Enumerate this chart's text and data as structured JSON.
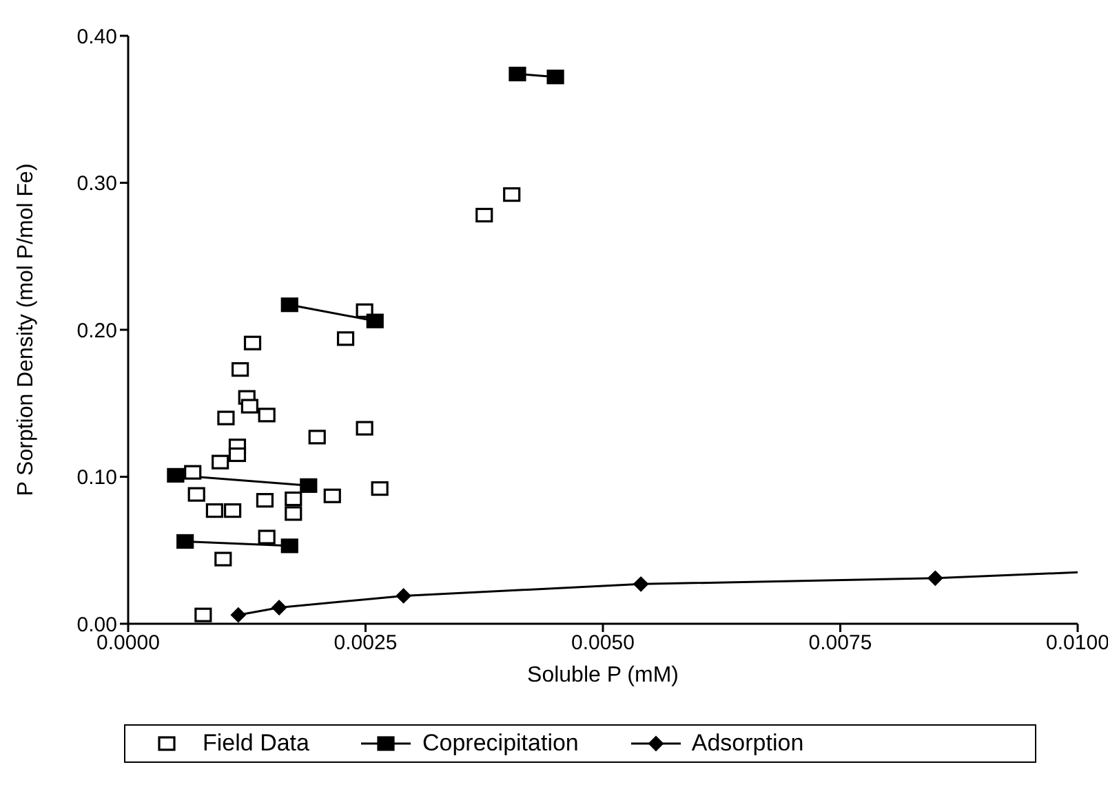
{
  "chart_data": {
    "type": "scatter",
    "xlabel": "Soluble P (mM)",
    "ylabel": "P Sorption Density  (mol P/mol Fe)",
    "xlim": [
      0,
      0.01
    ],
    "xticks": [
      {
        "value": 0,
        "label": "0.0000"
      },
      {
        "value": 0.0025,
        "label": "0.0025"
      },
      {
        "value": 0.005,
        "label": "0.0050"
      },
      {
        "value": 0.0075,
        "label": "0.0075"
      },
      {
        "value": 0.01,
        "label": "0.0100"
      }
    ],
    "ylim": [
      0,
      0.4
    ],
    "yticks": [
      {
        "value": 0,
        "label": "0.00"
      },
      {
        "value": 0.1,
        "label": "0.10"
      },
      {
        "value": 0.2,
        "label": "0.20"
      },
      {
        "value": 0.3,
        "label": "0.30"
      },
      {
        "value": 0.4,
        "label": "0.40"
      }
    ],
    "legend": "bottom",
    "series": [
      {
        "name": "Field Data",
        "marker": "square",
        "color": "#000000",
        "x": [
          0.00249,
          0.00131,
          0.00229,
          0.00118,
          0.00125,
          0.00128,
          0.00146,
          0.00103,
          0.00199,
          0.00249,
          0.00115,
          0.00115,
          0.00097,
          0.00068,
          0.00072,
          0.00215,
          0.00265,
          0.00144,
          0.00091,
          0.0011,
          0.00174,
          0.00174,
          0.00146,
          0.001,
          0.00079,
          0.00404,
          0.00375
        ],
        "values": [
          0.213,
          0.191,
          0.194,
          0.173,
          0.154,
          0.148,
          0.142,
          0.14,
          0.127,
          0.133,
          0.121,
          0.115,
          0.11,
          0.103,
          0.088,
          0.087,
          0.092,
          0.084,
          0.077,
          0.077,
          0.085,
          0.075,
          0.059,
          0.044,
          0.006,
          0.292,
          0.278
        ]
      },
      {
        "name": "Coprecipitation",
        "type": "line",
        "marker": "square",
        "color": "#000000",
        "x": [
          0.0005,
          0.0019
        ],
        "values": [
          0.101,
          0.094
        ]
      },
      {
        "type": "line",
        "marker": "square",
        "color": "#000000",
        "x": [
          0.0006,
          0.0017
        ],
        "values": [
          0.056,
          0.053
        ]
      },
      {
        "type": "line",
        "marker": "square",
        "color": "#000000",
        "x": [
          0.0017,
          0.0026
        ],
        "values": [
          0.217,
          0.206
        ]
      },
      {
        "type": "line",
        "marker": "square",
        "color": "#000000",
        "x": [
          0.0041,
          0.0045
        ],
        "values": [
          0.374,
          0.372
        ]
      },
      {
        "name": "Adsorption",
        "type": "line",
        "marker": "diamond",
        "color": "#000000",
        "x": [
          0.00116,
          0.00159,
          0.0029,
          0.0054,
          0.0085
        ],
        "values": [
          0.006,
          0.011,
          0.019,
          0.027,
          0.031
        ]
      },
      {
        "type": "line",
        "marker": "none",
        "color": "#000000",
        "x": [
          0.0085,
          0.01
        ],
        "values": [
          0.031,
          0.035
        ]
      }
    ]
  }
}
